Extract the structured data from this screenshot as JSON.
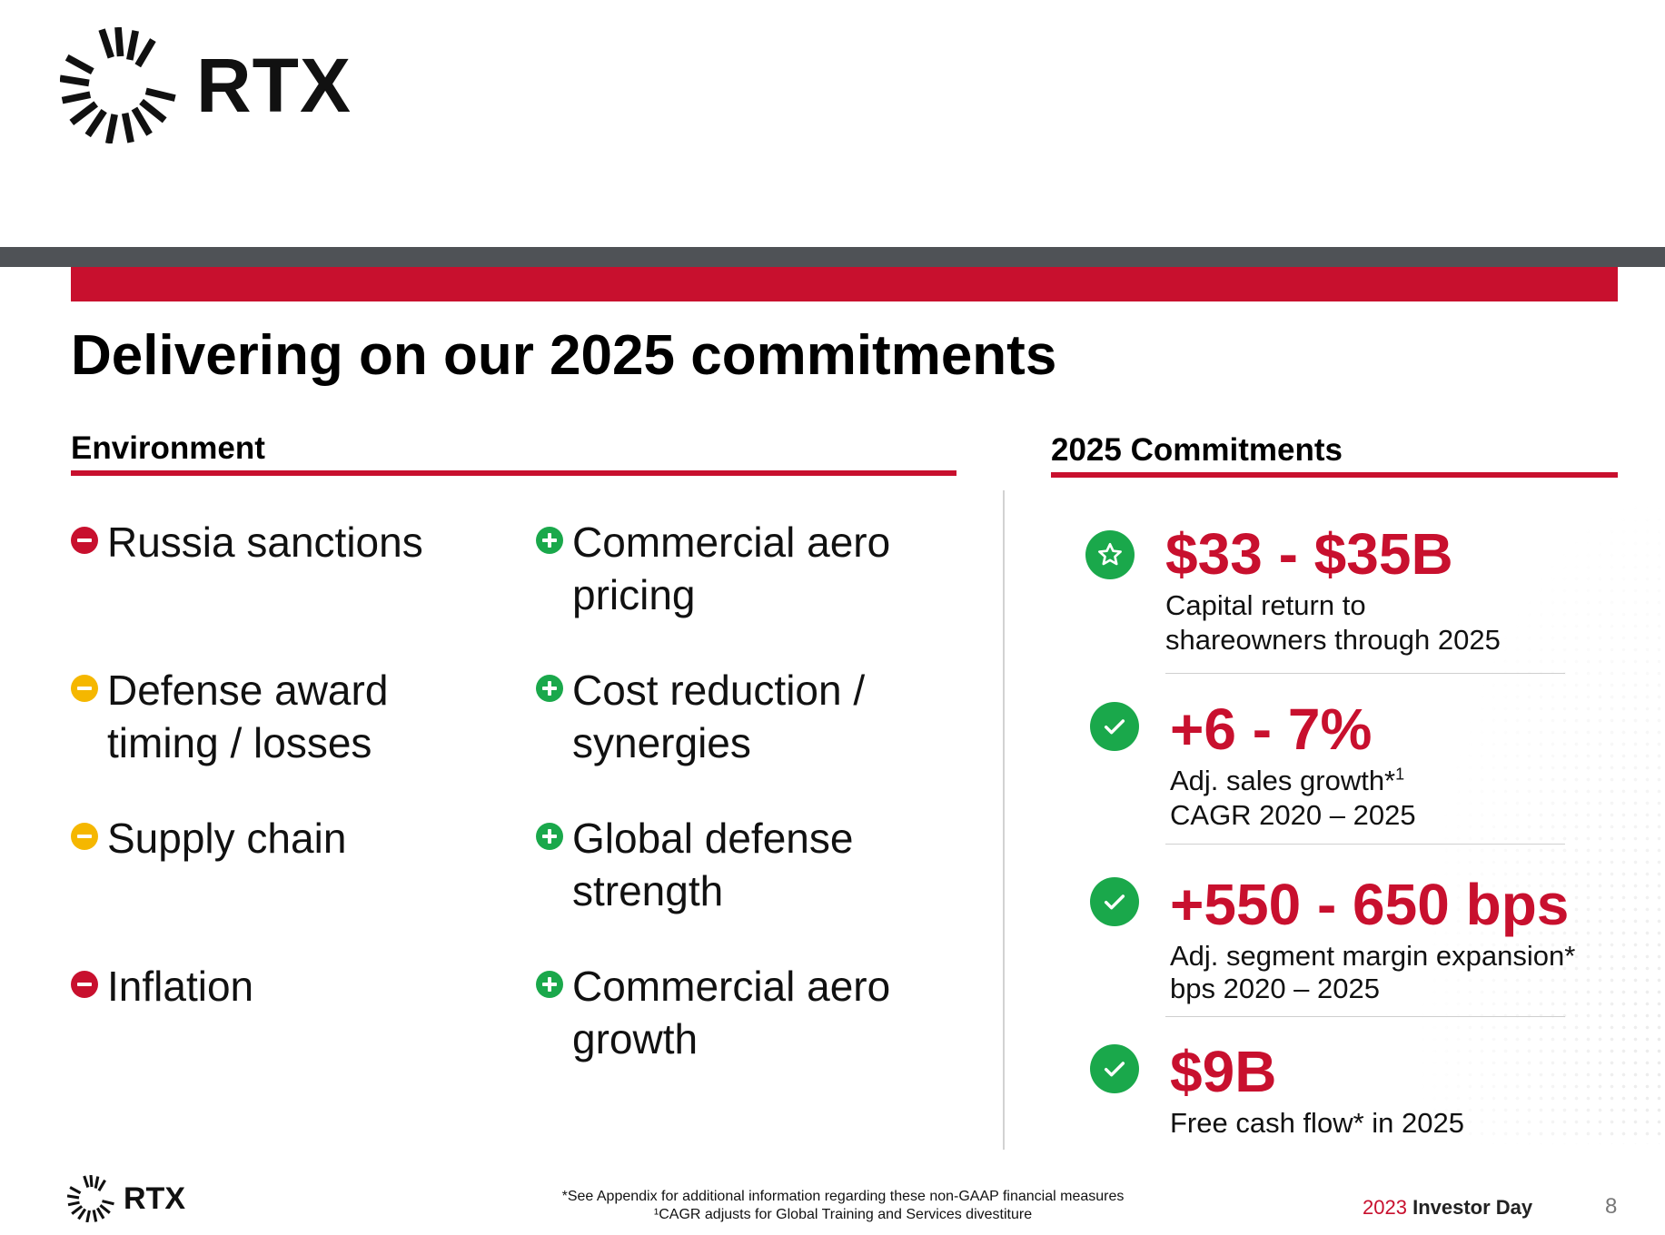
{
  "header": {
    "logo_wordmark": "RTX",
    "logo_icon": "rtx-sunburst-icon"
  },
  "slide": {
    "title": "Delivering on our 2025 commitments"
  },
  "environment": {
    "heading": "Environment",
    "headwinds": [
      {
        "text": "Russia sanctions",
        "icon": "minus-circle-icon",
        "color": "#c8102e"
      },
      {
        "text": "Defense award timing / losses",
        "icon": "minus-circle-icon",
        "color": "#f5b700"
      },
      {
        "text": "Supply chain",
        "icon": "minus-circle-icon",
        "color": "#f5b700"
      },
      {
        "text": "Inflation",
        "icon": "minus-circle-icon",
        "color": "#c8102e"
      }
    ],
    "tailwinds": [
      {
        "text": "Commercial aero pricing",
        "icon": "plus-circle-icon",
        "color": "#1aa84b"
      },
      {
        "text": "Cost reduction / synergies",
        "icon": "plus-circle-icon",
        "color": "#1aa84b"
      },
      {
        "text": "Global defense strength",
        "icon": "plus-circle-icon",
        "color": "#1aa84b"
      },
      {
        "text": "Commercial aero growth",
        "icon": "plus-circle-icon",
        "color": "#1aa84b"
      }
    ]
  },
  "commitments": {
    "heading": "2025 Commitments",
    "items": [
      {
        "value": "$33 - $35B",
        "line1": "Capital return to",
        "line1_sup": "",
        "line2": "shareowners through 2025",
        "icon": "star-circle-icon"
      },
      {
        "value": "+6 - 7%",
        "line1": "Adj. sales growth*",
        "line1_sup": "1",
        "line2": "CAGR 2020 – 2025",
        "icon": "check-circle-icon"
      },
      {
        "value": "+550 - 650 bps",
        "line1": "Adj. segment margin expansion*",
        "line1_sup": "",
        "line2": "bps 2020 – 2025",
        "icon": "check-circle-icon"
      },
      {
        "value": "$9B",
        "line1": "Free cash flow* in 2025",
        "line1_sup": "",
        "line2": "",
        "icon": "check-circle-icon"
      }
    ]
  },
  "footer": {
    "logo_wordmark": "RTX",
    "footnote_1": "*See Appendix for additional information regarding these non-GAAP financial measures",
    "footnote_2": "¹CAGR adjusts for Global Training and Services divestiture",
    "event_year": "2023",
    "event_name": "Investor Day",
    "page_number": "8"
  },
  "colors": {
    "accent_red": "#c8102e",
    "positive_green": "#1aa84b",
    "caution_yellow": "#f5b700",
    "header_bar_grey": "#4f5256"
  }
}
